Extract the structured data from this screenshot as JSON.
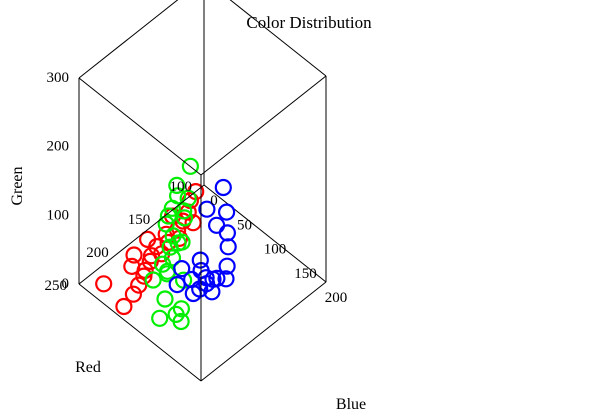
{
  "chart_data": {
    "type": "scatter",
    "subtype": "3d-scatter",
    "title": "Color Distribution",
    "axes": {
      "x": {
        "label": "Blue",
        "range": [
          0,
          200
        ],
        "ticks": [
          "0",
          "50",
          "100",
          "150",
          "200"
        ],
        "tick_values": [
          0,
          50,
          100,
          150,
          200
        ]
      },
      "y": {
        "label": "Red",
        "range": [
          100,
          250
        ],
        "ticks": [
          "100",
          "150",
          "200",
          "250"
        ],
        "tick_values": [
          100,
          150,
          200,
          250
        ]
      },
      "z": {
        "label": "Green",
        "range": [
          0,
          300
        ],
        "ticks": [
          "0",
          "100",
          "200",
          "300"
        ],
        "tick_values": [
          0,
          100,
          200,
          300
        ]
      }
    },
    "grid": false,
    "marker": "open-circle",
    "series": [
      {
        "color": "#ff0000",
        "points": [
          [
            0,
            110,
            0
          ],
          [
            5,
            120,
            0
          ],
          [
            15,
            130,
            0
          ],
          [
            20,
            140,
            0
          ],
          [
            25,
            150,
            0
          ],
          [
            10,
            145,
            5
          ],
          [
            30,
            135,
            0
          ],
          [
            20,
            160,
            0
          ],
          [
            30,
            165,
            0
          ],
          [
            35,
            155,
            0
          ],
          [
            25,
            175,
            0
          ],
          [
            35,
            190,
            0
          ],
          [
            40,
            200,
            0
          ],
          [
            45,
            205,
            0
          ],
          [
            15,
            195,
            0
          ],
          [
            25,
            205,
            0
          ],
          [
            50,
            215,
            0
          ],
          [
            55,
            225,
            0
          ],
          [
            60,
            240,
            0
          ],
          [
            20,
            235,
            0
          ],
          [
            30,
            185,
            0
          ],
          [
            40,
            180,
            5
          ],
          [
            10,
            175,
            0
          ]
        ]
      },
      {
        "color": "#00ee00",
        "points": [
          [
            5,
            120,
            50
          ],
          [
            10,
            140,
            45
          ],
          [
            25,
            150,
            50
          ],
          [
            15,
            130,
            20
          ],
          [
            10,
            150,
            10
          ],
          [
            20,
            160,
            15
          ],
          [
            35,
            150,
            35
          ],
          [
            50,
            160,
            45
          ],
          [
            45,
            170,
            25
          ],
          [
            60,
            175,
            30
          ],
          [
            55,
            190,
            10
          ],
          [
            70,
            195,
            15
          ],
          [
            60,
            205,
            5
          ],
          [
            40,
            170,
            5
          ],
          [
            85,
            200,
            50
          ],
          [
            90,
            210,
            40
          ],
          [
            110,
            205,
            40
          ],
          [
            100,
            220,
            20
          ],
          [
            120,
            215,
            15
          ],
          [
            125,
            225,
            20
          ],
          [
            140,
            230,
            25
          ],
          [
            105,
            230,
            5
          ],
          [
            80,
            185,
            55
          ],
          [
            30,
            160,
            45
          ]
        ]
      },
      {
        "color": "#0000ff",
        "points": [
          [
            100,
            150,
            115
          ],
          [
            130,
            180,
            110
          ],
          [
            160,
            190,
            160
          ],
          [
            175,
            200,
            150
          ],
          [
            190,
            210,
            150
          ],
          [
            195,
            215,
            130
          ],
          [
            200,
            220,
            120
          ],
          [
            185,
            220,
            110
          ],
          [
            175,
            225,
            100
          ],
          [
            165,
            210,
            85
          ],
          [
            160,
            230,
            80
          ],
          [
            150,
            215,
            65
          ],
          [
            140,
            200,
            60
          ],
          [
            125,
            195,
            55
          ],
          [
            110,
            185,
            50
          ],
          [
            100,
            200,
            45
          ],
          [
            170,
            215,
            75
          ],
          [
            155,
            210,
            180
          ],
          [
            120,
            220,
            55
          ],
          [
            130,
            210,
            60
          ]
        ]
      }
    ]
  }
}
